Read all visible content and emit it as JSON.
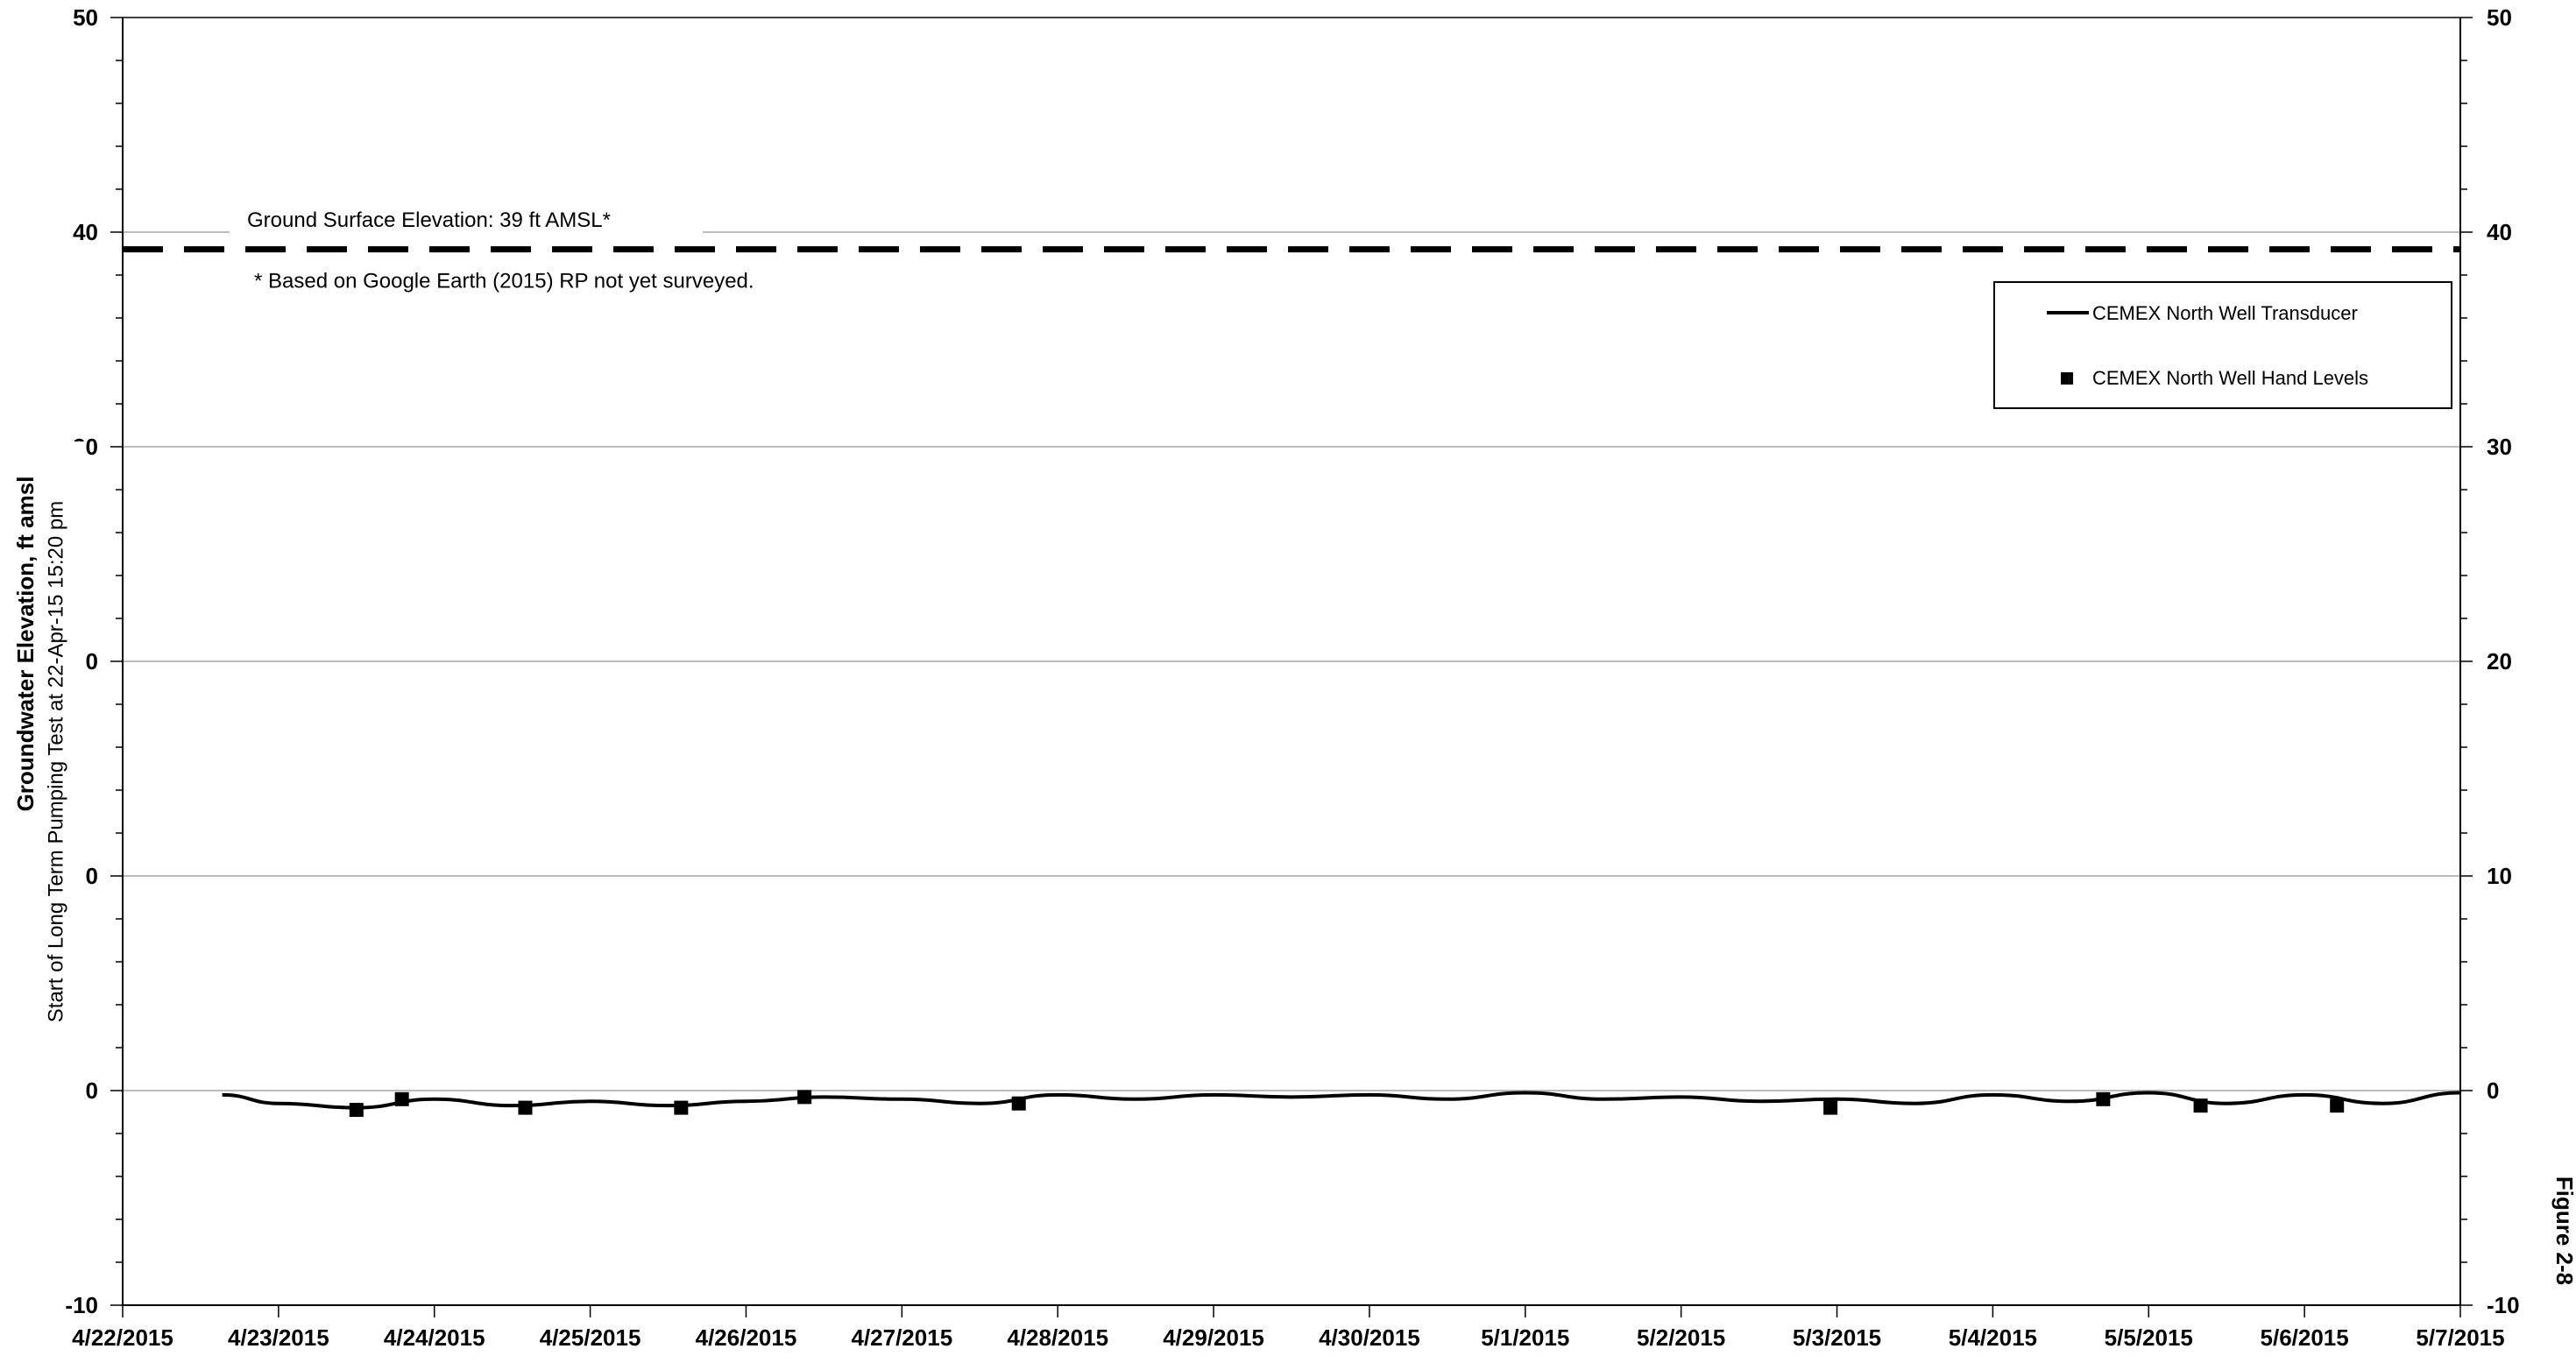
{
  "chart_data": {
    "type": "line",
    "ylabel": "Groundwater Elevation, ft amsl",
    "ylim": [
      -10,
      50
    ],
    "yticks": [
      "-10",
      "0",
      "10",
      "20",
      "30",
      "40",
      "50"
    ],
    "xlim": [
      "2015-04-22",
      "2015-05-07"
    ],
    "xticks": [
      "4/22/2015",
      "4/23/2015",
      "4/24/2015",
      "4/25/2015",
      "4/26/2015",
      "4/27/2015",
      "4/28/2015",
      "4/29/2015",
      "4/30/2015",
      "5/1/2015",
      "5/2/2015",
      "5/3/2015",
      "5/4/2015",
      "5/5/2015",
      "5/6/2015",
      "5/7/2015"
    ],
    "grid": true,
    "legend_position": "top-right",
    "ground_surface": {
      "value": 39.2,
      "label": "Ground Surface Elevation: 39 ft AMSL*",
      "note": "* Based on Google Earth (2015) RP not yet surveyed."
    },
    "vertical_marker": {
      "x": "2015-04-22T15:20",
      "label": "Start of Long Term Pumping Test at 22-Apr-15 15:20 pm"
    },
    "series": [
      {
        "name": "CEMEX North Well Transducer",
        "style": "line",
        "x": [
          "2015-04-22T15:20",
          "2015-04-23T00:00",
          "2015-04-23T12:00",
          "2015-04-24T00:00",
          "2015-04-24T12:00",
          "2015-04-25T00:00",
          "2015-04-25T12:00",
          "2015-04-26T00:00",
          "2015-04-26T12:00",
          "2015-04-27T00:00",
          "2015-04-27T12:00",
          "2015-04-28T00:00",
          "2015-04-28T12:00",
          "2015-04-29T00:00",
          "2015-04-29T12:00",
          "2015-04-30T00:00",
          "2015-04-30T12:00",
          "2015-05-01T00:00",
          "2015-05-01T12:00",
          "2015-05-02T00:00",
          "2015-05-02T12:00",
          "2015-05-03T00:00",
          "2015-05-03T12:00",
          "2015-05-04T00:00",
          "2015-05-04T12:00",
          "2015-05-05T00:00",
          "2015-05-05T12:00",
          "2015-05-06T00:00",
          "2015-05-06T12:00",
          "2015-05-07T00:00"
        ],
        "y": [
          -0.2,
          -0.6,
          -0.8,
          -0.4,
          -0.7,
          -0.5,
          -0.7,
          -0.5,
          -0.3,
          -0.4,
          -0.6,
          -0.2,
          -0.4,
          -0.2,
          -0.3,
          -0.2,
          -0.4,
          -0.1,
          -0.4,
          -0.3,
          -0.5,
          -0.4,
          -0.6,
          -0.2,
          -0.5,
          -0.1,
          -0.6,
          -0.2,
          -0.6,
          -0.1
        ]
      },
      {
        "name": "CEMEX North Well Hand Levels",
        "style": "marker",
        "x": [
          "2015-04-23T12:00",
          "2015-04-23T19:00",
          "2015-04-24T14:00",
          "2015-04-25T14:00",
          "2015-04-26T09:00",
          "2015-04-27T18:00",
          "2015-05-02T23:00",
          "2015-05-04T17:00",
          "2015-05-05T08:00",
          "2015-05-06T05:00"
        ],
        "y": [
          -0.9,
          -0.4,
          -0.8,
          -0.8,
          -0.3,
          -0.6,
          -0.8,
          -0.4,
          -0.7,
          -0.7
        ]
      }
    ]
  },
  "figure_label": "Figure 2-8"
}
